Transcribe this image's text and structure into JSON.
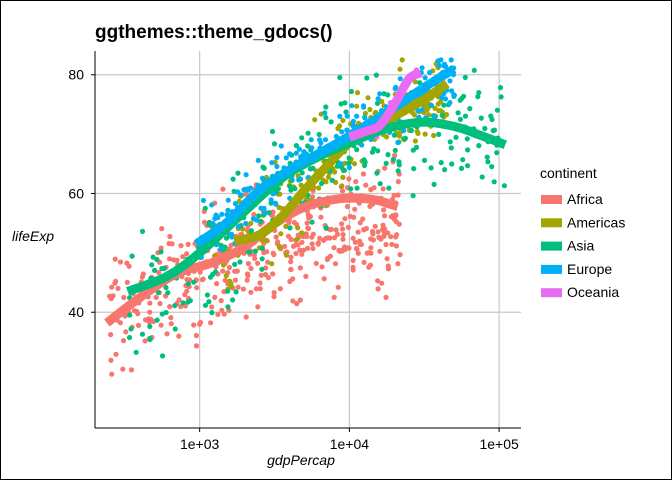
{
  "chart_data": {
    "type": "scatter",
    "title": "ggthemes::theme_gdocs()",
    "xlabel": "gdpPercap",
    "ylabel": "lifeExp",
    "x_scale": "log10",
    "xlim": [
      200,
      140000
    ],
    "ylim": [
      20.5,
      84
    ],
    "x_ticks": [
      1000,
      10000,
      100000
    ],
    "x_tick_labels": [
      "1e+03",
      "1e+04",
      "1e+05"
    ],
    "y_ticks": [
      40,
      60,
      80
    ],
    "y_tick_labels": [
      "40",
      "60",
      "80"
    ],
    "grid": true,
    "legend": {
      "title": "continent",
      "position": "right",
      "entries": [
        "Africa",
        "Americas",
        "Asia",
        "Europe",
        "Oceania"
      ]
    },
    "colors": {
      "Africa": "#F8766D",
      "Americas": "#A3A500",
      "Asia": "#00BF7D",
      "Europe": "#00B0F6",
      "Oceania": "#E76BF3"
    },
    "series": [
      {
        "name": "Africa",
        "smooth": [
          [
            240,
            38.2
          ],
          [
            400,
            42.5
          ],
          [
            700,
            46.5
          ],
          [
            1200,
            48.3
          ],
          [
            2000,
            51
          ],
          [
            3000,
            54.5
          ],
          [
            5000,
            57.7
          ],
          [
            8000,
            59
          ],
          [
            11000,
            59.2
          ],
          [
            15000,
            58.9
          ],
          [
            21000,
            57.8
          ]
        ],
        "cloud": {
          "x_range": [
            250,
            22000
          ],
          "center": [
            [
              250,
              40
            ],
            [
              600,
              44
            ],
            [
              1000,
              46
            ],
            [
              2000,
              49
            ],
            [
              5000,
              53
            ],
            [
              10000,
              56
            ],
            [
              20000,
              55
            ]
          ],
          "spread": 9,
          "n": 440
        }
      },
      {
        "name": "Americas",
        "smooth": [
          [
            1700,
            52
          ],
          [
            2500,
            53
          ],
          [
            3500,
            56
          ],
          [
            5000,
            60.5
          ],
          [
            7000,
            64.5
          ],
          [
            10000,
            68.5
          ],
          [
            15000,
            71
          ],
          [
            20000,
            73
          ],
          [
            30000,
            75.5
          ],
          [
            45000,
            78.5
          ]
        ],
        "cloud": {
          "x_range": [
            1200,
            45000
          ],
          "center": [
            [
              1200,
              48
            ],
            [
              3000,
              55
            ],
            [
              6000,
              63
            ],
            [
              10000,
              68
            ],
            [
              20000,
              73
            ],
            [
              40000,
              77
            ]
          ],
          "spread": 7,
          "n": 200
        }
      },
      {
        "name": "Asia",
        "smooth": [
          [
            330,
            43.5
          ],
          [
            600,
            46
          ],
          [
            1000,
            50
          ],
          [
            2000,
            57
          ],
          [
            3500,
            62.5
          ],
          [
            6000,
            66
          ],
          [
            10000,
            68.5
          ],
          [
            17000,
            70.8
          ],
          [
            30000,
            72
          ],
          [
            50000,
            71.3
          ],
          [
            75000,
            69.8
          ],
          [
            110000,
            68.2
          ]
        ],
        "cloud": {
          "x_range": [
            330,
            110000
          ],
          "center": [
            [
              330,
              40
            ],
            [
              800,
              45
            ],
            [
              1500,
              50
            ],
            [
              3000,
              59
            ],
            [
              8000,
              67
            ],
            [
              20000,
              71
            ],
            [
              60000,
              72
            ],
            [
              110000,
              68
            ]
          ],
          "spread": 9,
          "n": 260
        }
      },
      {
        "name": "Europe",
        "smooth": [
          [
            950,
            51.5
          ],
          [
            1500,
            55
          ],
          [
            2500,
            60.5
          ],
          [
            4000,
            64
          ],
          [
            6000,
            66.5
          ],
          [
            9000,
            69
          ],
          [
            13000,
            71.5
          ],
          [
            20000,
            74.5
          ],
          [
            30000,
            77.5
          ],
          [
            50000,
            81
          ]
        ],
        "cloud": {
          "x_range": [
            1000,
            50000
          ],
          "center": [
            [
              1000,
              52
            ],
            [
              3000,
              62
            ],
            [
              6000,
              67
            ],
            [
              10000,
              70
            ],
            [
              20000,
              74
            ],
            [
              40000,
              79
            ]
          ],
          "spread": 5,
          "n": 220
        }
      },
      {
        "name": "Oceania",
        "smooth": [
          [
            10000,
            69.5
          ],
          [
            13000,
            70.5
          ],
          [
            16000,
            71.5
          ],
          [
            20000,
            75
          ],
          [
            25000,
            79.3
          ],
          [
            30000,
            80.3
          ]
        ],
        "cloud": {
          "x_range": [
            10000,
            34000
          ],
          "center": [
            [
              10000,
              69.5
            ],
            [
              15000,
              71
            ],
            [
              20000,
              75
            ],
            [
              30000,
              80.5
            ]
          ],
          "spread": 1.5,
          "n": 24
        }
      }
    ]
  }
}
